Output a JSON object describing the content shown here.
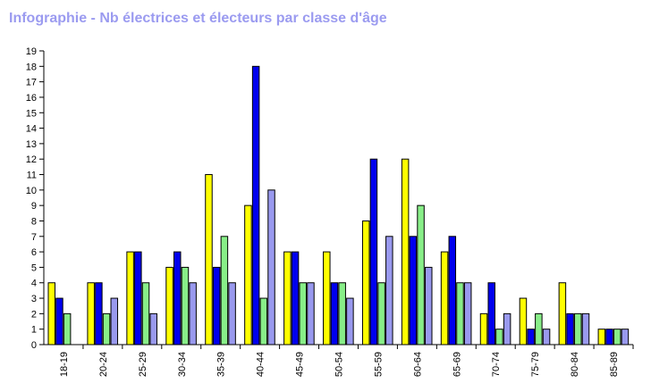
{
  "chart_data": {
    "type": "bar",
    "title": "Infographie - Nb électrices et électeurs par classe d'âge",
    "categories": [
      "18-19",
      "20-24",
      "25-29",
      "30-34",
      "35-39",
      "40-44",
      "45-49",
      "50-54",
      "55-59",
      "60-64",
      "65-69",
      "70-74",
      "75-79",
      "80-84",
      "85-89"
    ],
    "series": [
      {
        "color": "#ffff00",
        "values": [
          4,
          4,
          6,
          5,
          11,
          9,
          6,
          6,
          8,
          12,
          6,
          2,
          3,
          4,
          1
        ]
      },
      {
        "color": "#0000ee",
        "values": [
          3,
          4,
          6,
          6,
          5,
          18,
          6,
          4,
          12,
          7,
          7,
          4,
          1,
          2,
          1
        ]
      },
      {
        "color": "#88ee88",
        "values": [
          2,
          2,
          4,
          5,
          7,
          3,
          4,
          4,
          4,
          9,
          4,
          1,
          2,
          2,
          1
        ]
      },
      {
        "color": "#9999ee",
        "values": [
          0,
          3,
          2,
          4,
          4,
          10,
          4,
          3,
          7,
          5,
          4,
          2,
          1,
          2,
          1
        ]
      }
    ],
    "ylim": [
      0,
      19
    ],
    "yticks": [
      0,
      1,
      2,
      3,
      4,
      5,
      6,
      7,
      8,
      9,
      10,
      11,
      12,
      13,
      14,
      15,
      16,
      17,
      18,
      19
    ],
    "grid": false,
    "xlabel": "",
    "ylabel": ""
  }
}
